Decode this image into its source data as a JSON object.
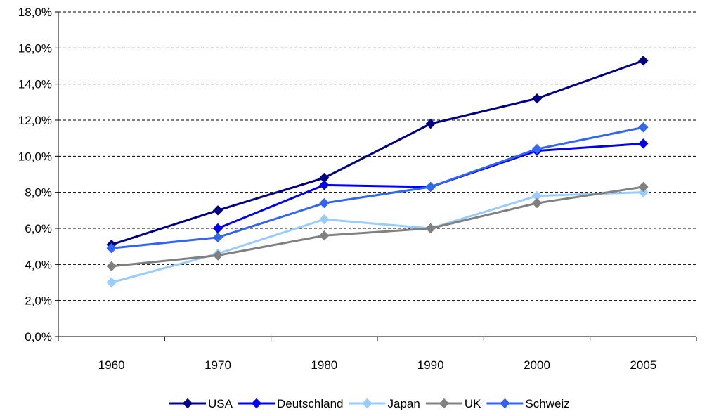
{
  "chart_data": {
    "type": "line",
    "title": "",
    "xlabel": "",
    "ylabel": "",
    "categories": [
      "1960",
      "1970",
      "1980",
      "1990",
      "2000",
      "2005"
    ],
    "y_ticks": [
      0,
      2,
      4,
      6,
      8,
      10,
      12,
      14,
      16,
      18
    ],
    "y_tick_labels": [
      "0,0%",
      "2,0%",
      "4,0%",
      "6,0%",
      "8,0%",
      "10,0%",
      "12,0%",
      "14,0%",
      "16,0%",
      "18,0%"
    ],
    "ylim": [
      0,
      18
    ],
    "grid": "horizontal-dashed",
    "legend_position": "bottom",
    "series": [
      {
        "name": "USA",
        "color": "#000080",
        "values": [
          5.1,
          7.0,
          8.8,
          11.8,
          13.2,
          15.3
        ]
      },
      {
        "name": "Deutschland",
        "color": "#0000ee",
        "values": [
          null,
          6.0,
          8.4,
          8.3,
          10.3,
          10.7
        ]
      },
      {
        "name": "Japan",
        "color": "#99ccff",
        "values": [
          3.0,
          4.6,
          6.5,
          6.0,
          7.8,
          8.0
        ]
      },
      {
        "name": "UK",
        "color": "#808080",
        "values": [
          3.9,
          4.5,
          5.6,
          6.0,
          7.4,
          8.3
        ]
      },
      {
        "name": "Schweiz",
        "color": "#3366ee",
        "values": [
          4.9,
          5.5,
          7.4,
          8.3,
          10.4,
          11.6
        ]
      }
    ]
  }
}
